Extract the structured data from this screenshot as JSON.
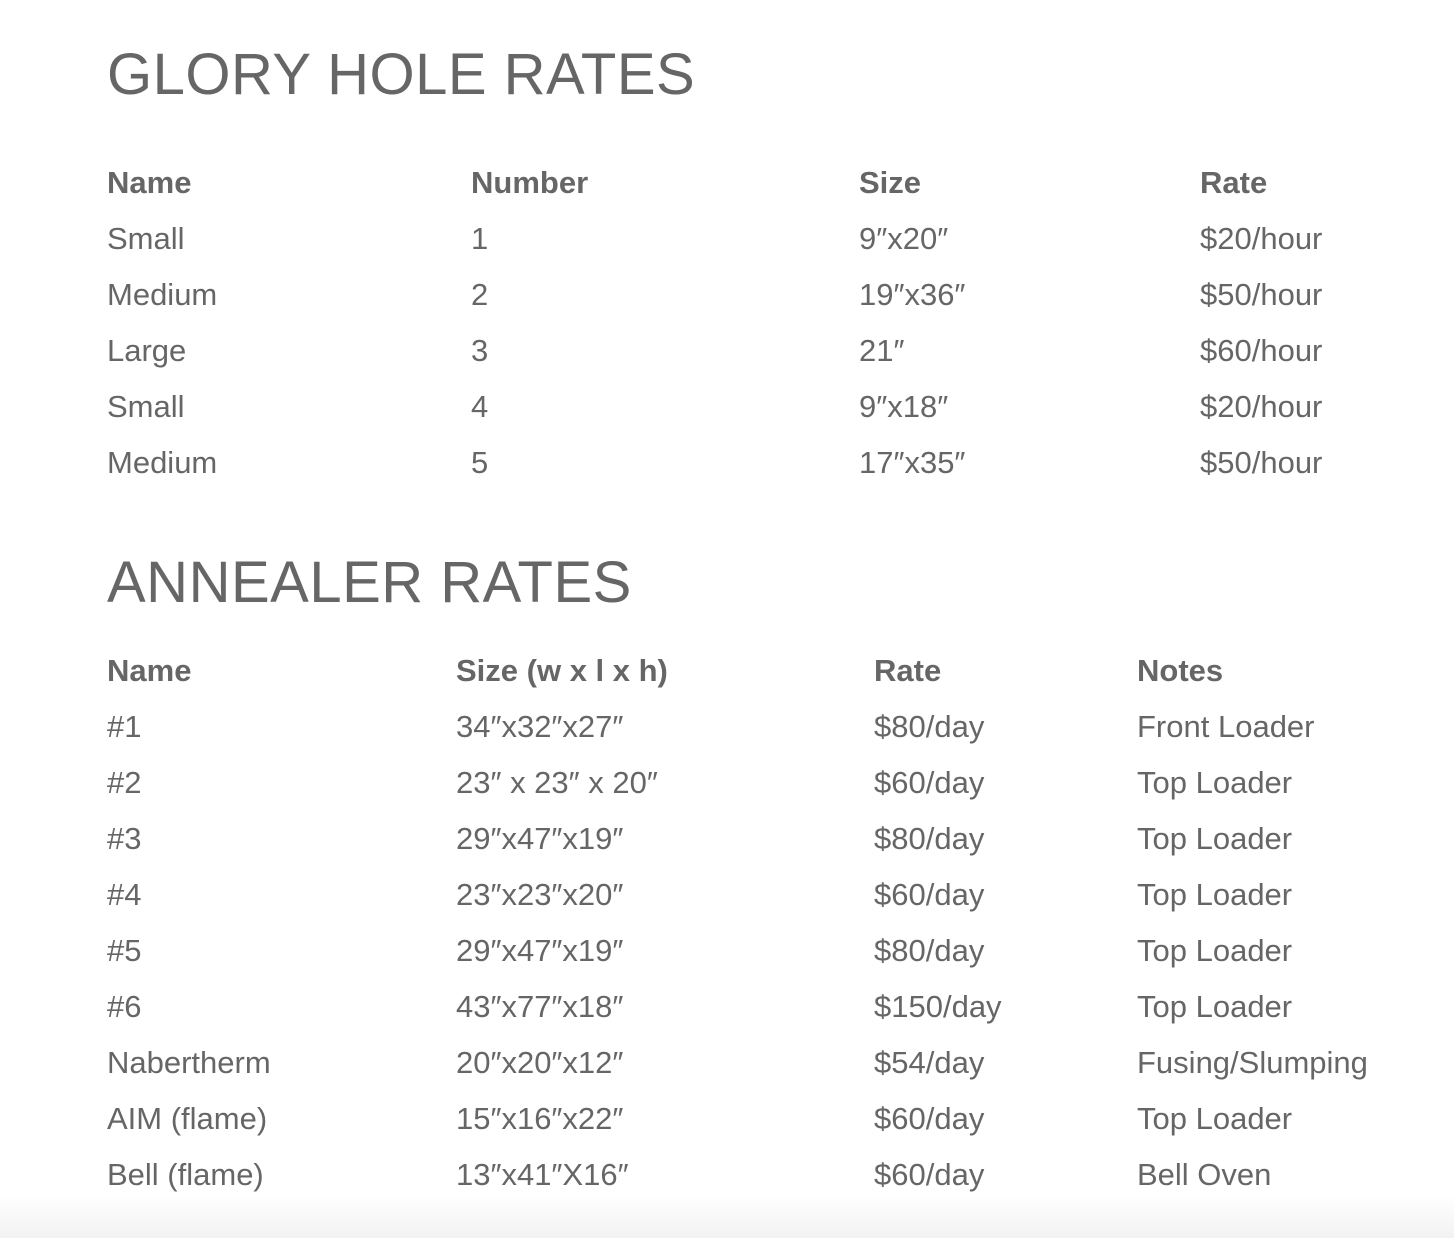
{
  "glory_hole": {
    "title": "GLORY HOLE RATES",
    "headers": [
      "Name",
      "Number",
      "Size",
      "Rate"
    ],
    "rows": [
      [
        "Small",
        "1",
        "9″x20″",
        "$20/hour"
      ],
      [
        "Medium",
        "2",
        "19″x36″",
        "$50/hour"
      ],
      [
        "Large",
        "3",
        "21″",
        "$60/hour"
      ],
      [
        "Small",
        "4",
        "9″x18″",
        "$20/hour"
      ],
      [
        "Medium",
        "5",
        "17″x35″",
        "$50/hour"
      ]
    ]
  },
  "annealer": {
    "title": "ANNEALER RATES",
    "headers": [
      "Name",
      "Size (w x l x h)",
      "Rate",
      "Notes"
    ],
    "rows": [
      [
        "#1",
        "34″x32″x27″",
        "$80/day",
        "Front Loader"
      ],
      [
        "#2",
        "23″ x 23″ x 20″",
        "$60/day",
        "Top Loader"
      ],
      [
        "#3",
        "29″x47″x19″",
        "$80/day",
        "Top Loader"
      ],
      [
        "#4",
        "23″x23″x20″",
        "$60/day",
        "Top Loader"
      ],
      [
        "#5",
        "29″x47″x19″",
        "$80/day",
        "Top Loader"
      ],
      [
        "#6",
        "43″x77″x18″",
        "$150/day",
        "Top Loader"
      ],
      [
        "Nabertherm",
        "20″x20″x12″",
        "$54/day",
        "Fusing/Slumping"
      ],
      [
        "AIM (flame)",
        "15″x16″x22″",
        "$60/day",
        "Top Loader"
      ],
      [
        "Bell (flame)",
        "13″x41″X16″",
        "$60/day",
        "Bell Oven"
      ]
    ]
  }
}
